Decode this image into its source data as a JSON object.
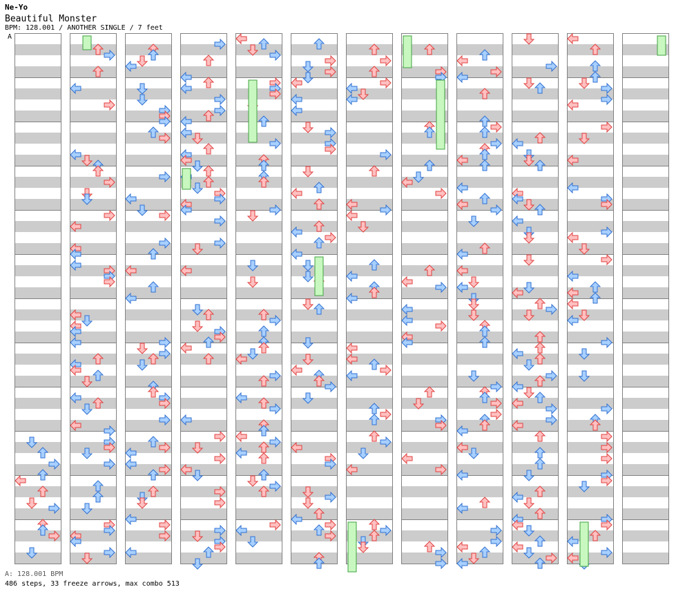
{
  "header": {
    "artist": "Ne-Yo",
    "title": "Beautiful Monster",
    "meta": "BPM: 128.001 / ANOTHER SINGLE / 7 feet"
  },
  "bpm_marker": "A",
  "footer": {
    "bpm_line": "A: 128.001 BPM",
    "stats": "486 steps, 33 freeze arrows, max combo 513"
  },
  "chart_layout": {
    "columns": 12,
    "measures_per_column": 12,
    "lanes": [
      "left",
      "down",
      "up",
      "right"
    ]
  },
  "colors": {
    "red_arrow_fill": "#ffc0c0",
    "red_arrow_stroke": "#e04040",
    "blue_arrow_fill": "#a8d0ff",
    "blue_arrow_stroke": "#3070d0",
    "freeze_fill": "#c8f8c0",
    "freeze_stroke": "#40a040",
    "stripe_gray": "#cccccc",
    "border": "#808080"
  }
}
